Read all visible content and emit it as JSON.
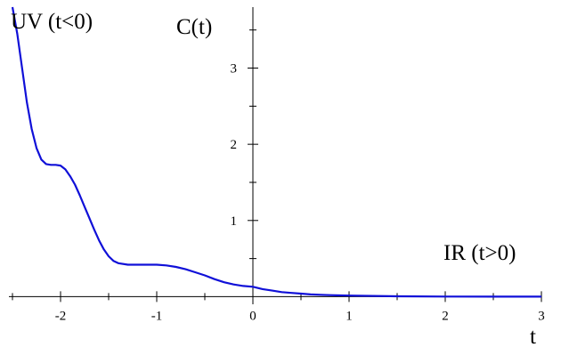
{
  "chart_data": {
    "type": "line",
    "title": "",
    "xlabel": "t",
    "ylabel": "C(t)",
    "xlim": [
      -2.5,
      3.0
    ],
    "ylim": [
      -0.1,
      3.8
    ],
    "grid": false,
    "x_ticks": [
      {
        "value": -2,
        "label": "-2"
      },
      {
        "value": -1,
        "label": "-1"
      },
      {
        "value": 0,
        "label": "0"
      },
      {
        "value": 1,
        "label": "1"
      },
      {
        "value": 2,
        "label": "2"
      },
      {
        "value": 3,
        "label": "3"
      }
    ],
    "y_ticks": [
      {
        "value": 1,
        "label": "1"
      },
      {
        "value": 2,
        "label": "2"
      },
      {
        "value": 3,
        "label": "3"
      }
    ],
    "annotations": [
      {
        "text": "UV (t<0)",
        "anchor": "top-left"
      },
      {
        "text": "IR (t>0)",
        "anchor": "right"
      }
    ],
    "series": [
      {
        "color": "#1010d8",
        "points": [
          [
            -2.5,
            3.8
          ],
          [
            -2.45,
            3.45
          ],
          [
            -2.4,
            3.0
          ],
          [
            -2.35,
            2.55
          ],
          [
            -2.3,
            2.2
          ],
          [
            -2.25,
            1.95
          ],
          [
            -2.2,
            1.8
          ],
          [
            -2.15,
            1.74
          ],
          [
            -2.1,
            1.73
          ],
          [
            -2.05,
            1.73
          ],
          [
            -2.0,
            1.72
          ],
          [
            -1.95,
            1.67
          ],
          [
            -1.9,
            1.58
          ],
          [
            -1.85,
            1.47
          ],
          [
            -1.8,
            1.33
          ],
          [
            -1.75,
            1.18
          ],
          [
            -1.7,
            1.03
          ],
          [
            -1.65,
            0.88
          ],
          [
            -1.6,
            0.74
          ],
          [
            -1.55,
            0.62
          ],
          [
            -1.5,
            0.53
          ],
          [
            -1.45,
            0.47
          ],
          [
            -1.4,
            0.44
          ],
          [
            -1.3,
            0.42
          ],
          [
            -1.2,
            0.42
          ],
          [
            -1.1,
            0.42
          ],
          [
            -1.0,
            0.42
          ],
          [
            -0.9,
            0.41
          ],
          [
            -0.8,
            0.39
          ],
          [
            -0.7,
            0.36
          ],
          [
            -0.6,
            0.32
          ],
          [
            -0.5,
            0.28
          ],
          [
            -0.4,
            0.23
          ],
          [
            -0.3,
            0.19
          ],
          [
            -0.2,
            0.16
          ],
          [
            -0.1,
            0.14
          ],
          [
            0.0,
            0.13
          ],
          [
            0.1,
            0.1
          ],
          [
            0.2,
            0.08
          ],
          [
            0.3,
            0.06
          ],
          [
            0.4,
            0.05
          ],
          [
            0.5,
            0.04
          ],
          [
            0.6,
            0.03
          ],
          [
            0.7,
            0.025
          ],
          [
            0.8,
            0.02
          ],
          [
            1.0,
            0.015
          ],
          [
            1.5,
            0.005
          ],
          [
            2.0,
            0.002
          ],
          [
            2.5,
            0.001
          ],
          [
            3.0,
            0.0
          ]
        ]
      }
    ]
  }
}
